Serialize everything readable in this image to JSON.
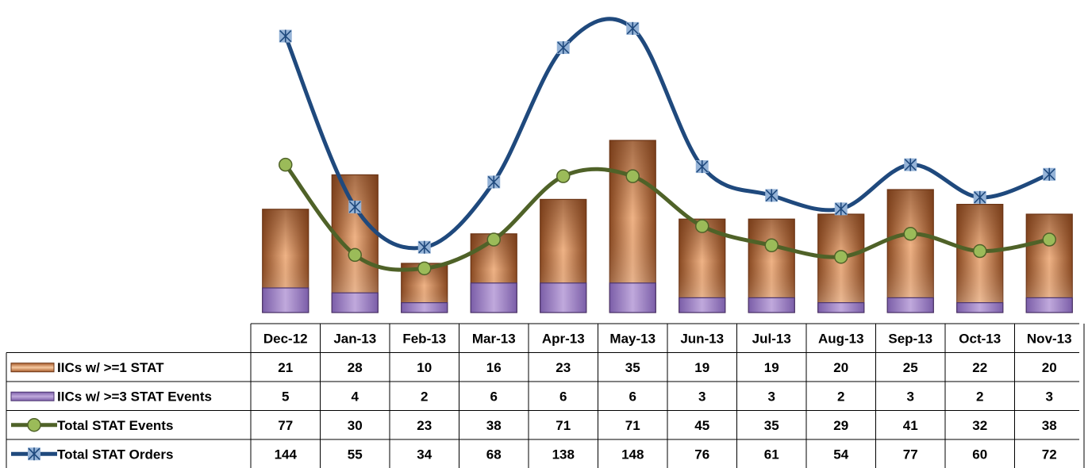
{
  "chart_data": {
    "type": "bar",
    "categories": [
      "Dec-12",
      "Jan-13",
      "Feb-13",
      "Mar-13",
      "Apr-13",
      "May-13",
      "Jun-13",
      "Jul-13",
      "Aug-13",
      "Sep-13",
      "Oct-13",
      "Nov-13"
    ],
    "series": [
      {
        "name": "IICs w/ >=1 STAT",
        "type": "bar",
        "color": "#c97a45",
        "values": [
          21,
          28,
          10,
          16,
          23,
          35,
          19,
          19,
          20,
          25,
          22,
          20
        ]
      },
      {
        "name": "IICs w/ >=3 STAT Events",
        "type": "bar",
        "color": "#8e6fb5",
        "values": [
          5,
          4,
          2,
          6,
          6,
          6,
          3,
          3,
          2,
          3,
          2,
          3
        ]
      },
      {
        "name": "Total STAT Events",
        "type": "line",
        "color": "#4f6228",
        "marker": "circle",
        "marker_color": "#9bbb59",
        "values": [
          77,
          30,
          23,
          38,
          71,
          71,
          45,
          35,
          29,
          41,
          32,
          38
        ]
      },
      {
        "name": "Total STAT Orders",
        "type": "line",
        "color": "#1f497d",
        "marker": "star",
        "marker_color": "#95b3d7",
        "values": [
          144,
          55,
          34,
          68,
          138,
          148,
          76,
          61,
          54,
          77,
          60,
          72
        ]
      }
    ],
    "data_table": true,
    "legend_position": "data-table-left",
    "smoothed_lines": true
  }
}
